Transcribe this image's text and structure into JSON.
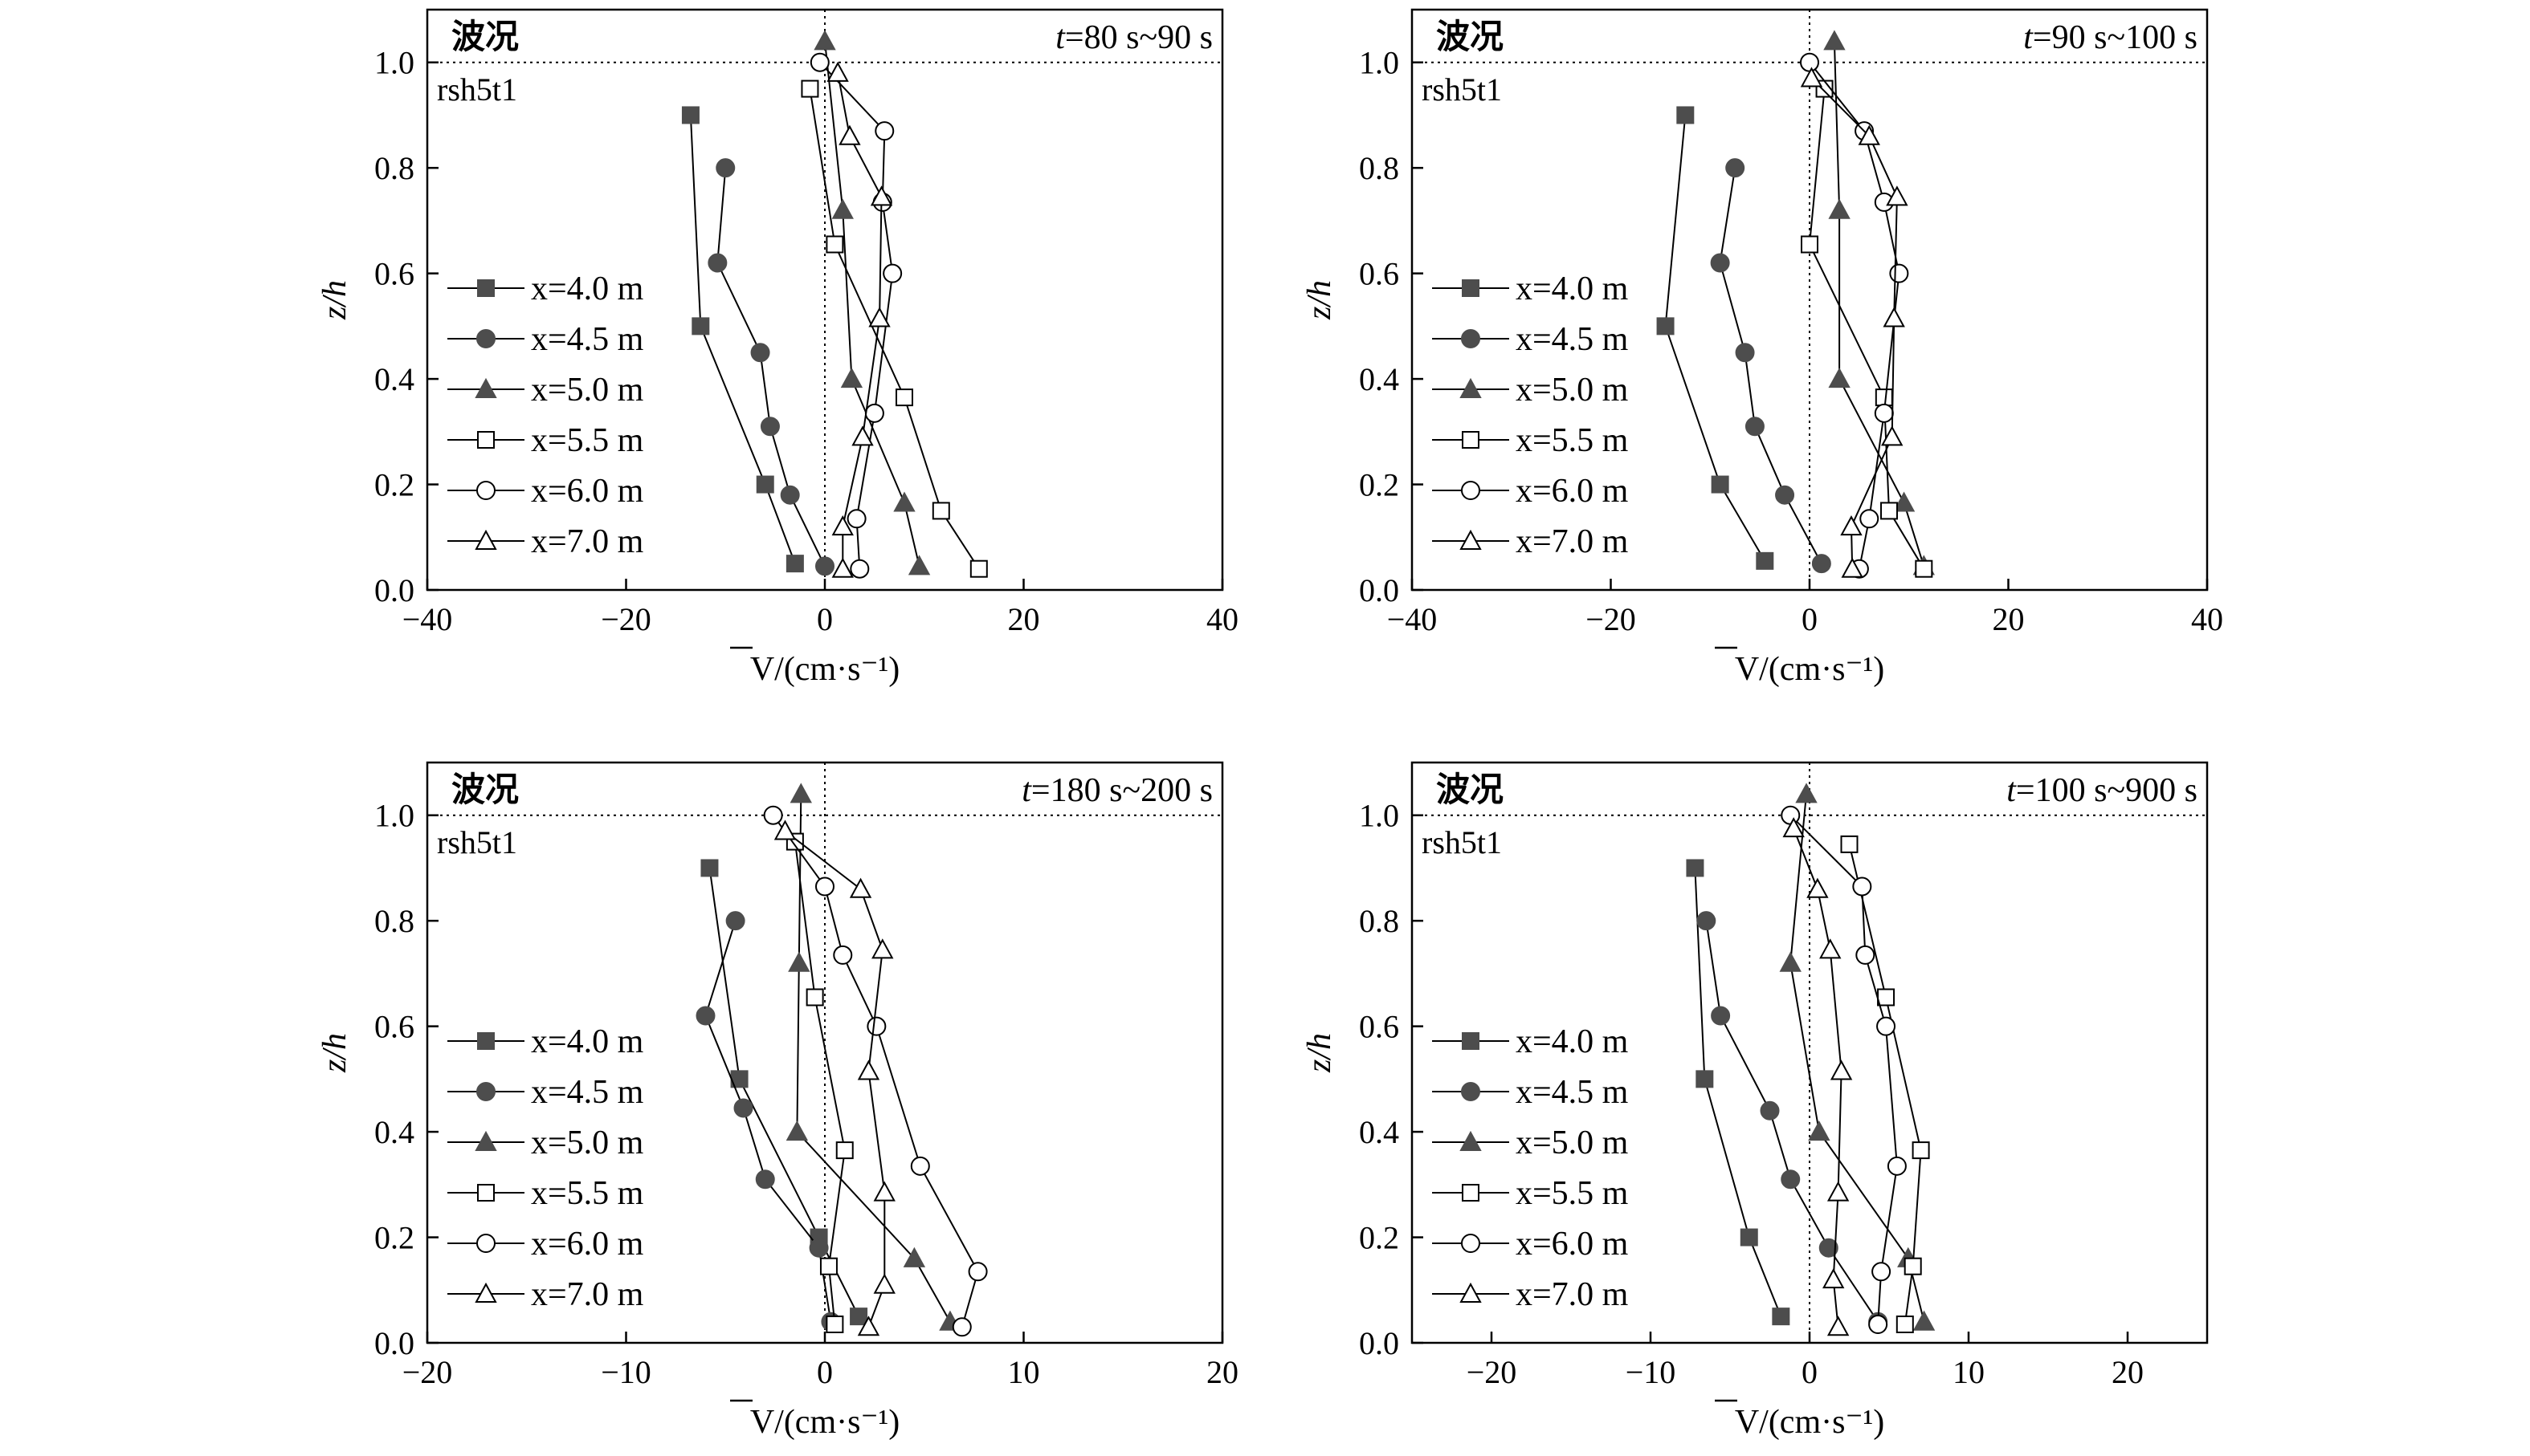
{
  "series_labels": [
    "x=4.0 m",
    "x=4.5 m",
    "x=5.0 m",
    "x=5.5 m",
    "x=6.0 m",
    "x=7.0 m"
  ],
  "series_styles": [
    {
      "marker": "square",
      "filled": true
    },
    {
      "marker": "circle",
      "filled": true
    },
    {
      "marker": "triangle",
      "filled": true
    },
    {
      "marker": "square",
      "filled": false
    },
    {
      "marker": "circle",
      "filled": false
    },
    {
      "marker": "triangle",
      "filled": false
    }
  ],
  "colors": {
    "filled_marker": "#4d4d4d",
    "line": "#000000",
    "background": "#ffffff"
  },
  "chart_data": [
    {
      "type": "line",
      "wave_label": "波况",
      "case_label": "rsh5t1",
      "time_label_var": "t",
      "time_label_rest": "=80 s~90 s",
      "xlabel": "V/(cm·s⁻¹)",
      "ylabel": "z/h",
      "xlim": [
        -40,
        40
      ],
      "ylim": [
        0,
        1.1
      ],
      "xticks": [
        -40,
        -20,
        0,
        20,
        40
      ],
      "yticks": [
        0.0,
        0.2,
        0.4,
        0.6,
        0.8,
        1.0
      ],
      "xticklabels": [
        "−40",
        "−20",
        "0",
        "20",
        "40"
      ],
      "yticklabels": [
        "0.0",
        "0.2",
        "0.4",
        "0.6",
        "0.8",
        "1.0"
      ],
      "reference_lines": {
        "x": 0,
        "y": 1.0
      },
      "series": [
        {
          "name": "x=4.0 m",
          "points": [
            [
              -13.5,
              0.9
            ],
            [
              -12.5,
              0.5
            ],
            [
              -6,
              0.2
            ],
            [
              -3,
              0.05
            ]
          ]
        },
        {
          "name": "x=4.5 m",
          "points": [
            [
              -10,
              0.8
            ],
            [
              -10.8,
              0.62
            ],
            [
              -6.5,
              0.45
            ],
            [
              -5.5,
              0.31
            ],
            [
              -3.5,
              0.18
            ],
            [
              0,
              0.045
            ]
          ]
        },
        {
          "name": "x=5.0 m",
          "points": [
            [
              0,
              1.04
            ],
            [
              1.8,
              0.72
            ],
            [
              2.7,
              0.4
            ],
            [
              8,
              0.165
            ],
            [
              9.5,
              0.045
            ]
          ]
        },
        {
          "name": "x=5.5 m",
          "points": [
            [
              -1.5,
              0.95
            ],
            [
              1,
              0.655
            ],
            [
              8,
              0.365
            ],
            [
              11.7,
              0.15
            ],
            [
              15.5,
              0.04
            ]
          ]
        },
        {
          "name": "x=6.0 m",
          "points": [
            [
              -0.5,
              1.0
            ],
            [
              6,
              0.87
            ],
            [
              5.8,
              0.735
            ],
            [
              6.8,
              0.6
            ],
            [
              5,
              0.335
            ],
            [
              3.2,
              0.135
            ],
            [
              3.5,
              0.04
            ]
          ]
        },
        {
          "name": "x=7.0 m",
          "points": [
            [
              1.3,
              0.98
            ],
            [
              2.5,
              0.86
            ],
            [
              5.7,
              0.745
            ],
            [
              5.5,
              0.515
            ],
            [
              3.8,
              0.29
            ],
            [
              1.8,
              0.12
            ],
            [
              1.8,
              0.04
            ]
          ]
        }
      ]
    },
    {
      "type": "line",
      "wave_label": "波况",
      "case_label": "rsh5t1",
      "time_label_var": "t",
      "time_label_rest": "=90 s~100 s",
      "xlabel": "V/(cm·s⁻¹)",
      "ylabel": "z/h",
      "xlim": [
        -40,
        40
      ],
      "ylim": [
        0,
        1.1
      ],
      "xticks": [
        -40,
        -20,
        0,
        20,
        40
      ],
      "yticks": [
        0.0,
        0.2,
        0.4,
        0.6,
        0.8,
        1.0
      ],
      "xticklabels": [
        "−40",
        "−20",
        "0",
        "20",
        "40"
      ],
      "yticklabels": [
        "0.0",
        "0.2",
        "0.4",
        "0.6",
        "0.8",
        "1.0"
      ],
      "reference_lines": {
        "x": 0,
        "y": 1.0
      },
      "series": [
        {
          "name": "x=4.0 m",
          "points": [
            [
              -12.5,
              0.9
            ],
            [
              -14.5,
              0.5
            ],
            [
              -9,
              0.2
            ],
            [
              -4.5,
              0.055
            ]
          ]
        },
        {
          "name": "x=4.5 m",
          "points": [
            [
              -7.5,
              0.8
            ],
            [
              -9,
              0.62
            ],
            [
              -6.5,
              0.45
            ],
            [
              -5.5,
              0.31
            ],
            [
              -2.5,
              0.18
            ],
            [
              1.2,
              0.05
            ]
          ]
        },
        {
          "name": "x=5.0 m",
          "points": [
            [
              2.5,
              1.04
            ],
            [
              3,
              0.72
            ],
            [
              3,
              0.4
            ],
            [
              9.5,
              0.165
            ],
            [
              11.5,
              0.045
            ]
          ]
        },
        {
          "name": "x=5.5 m",
          "points": [
            [
              1.5,
              0.95
            ],
            [
              0,
              0.655
            ],
            [
              7.5,
              0.365
            ],
            [
              8,
              0.15
            ],
            [
              11.5,
              0.04
            ]
          ]
        },
        {
          "name": "x=6.0 m",
          "points": [
            [
              0,
              1.0
            ],
            [
              5.5,
              0.87
            ],
            [
              7.5,
              0.735
            ],
            [
              9,
              0.6
            ],
            [
              7.5,
              0.335
            ],
            [
              6,
              0.135
            ],
            [
              5,
              0.04
            ]
          ]
        },
        {
          "name": "x=7.0 m",
          "points": [
            [
              0.2,
              0.97
            ],
            [
              6,
              0.86
            ],
            [
              8.8,
              0.745
            ],
            [
              8.5,
              0.515
            ],
            [
              8.3,
              0.29
            ],
            [
              4.2,
              0.12
            ],
            [
              4.3,
              0.04
            ]
          ]
        }
      ]
    },
    {
      "type": "line",
      "wave_label": "波况",
      "case_label": "rsh5t1",
      "time_label_var": "t",
      "time_label_rest": "=180 s~200 s",
      "xlabel": "V/(cm·s⁻¹)",
      "ylabel": "z/h",
      "xlim": [
        -20,
        20
      ],
      "ylim": [
        0,
        1.1
      ],
      "xticks": [
        -20,
        -10,
        0,
        10,
        20
      ],
      "yticks": [
        0.0,
        0.2,
        0.4,
        0.6,
        0.8,
        1.0
      ],
      "xticklabels": [
        "−20",
        "−10",
        "0",
        "10",
        "20"
      ],
      "yticklabels": [
        "0.0",
        "0.2",
        "0.4",
        "0.6",
        "0.8",
        "1.0"
      ],
      "reference_lines": {
        "x": 0,
        "y": 1.0
      },
      "series": [
        {
          "name": "x=4.0 m",
          "points": [
            [
              -5.8,
              0.9
            ],
            [
              -4.3,
              0.5
            ],
            [
              -0.3,
              0.2
            ],
            [
              1.7,
              0.05
            ]
          ]
        },
        {
          "name": "x=4.5 m",
          "points": [
            [
              -4.5,
              0.8
            ],
            [
              -6,
              0.62
            ],
            [
              -4.1,
              0.445
            ],
            [
              -3,
              0.31
            ],
            [
              -0.3,
              0.18
            ],
            [
              0.3,
              0.04
            ]
          ]
        },
        {
          "name": "x=5.0 m",
          "points": [
            [
              -1.2,
              1.04
            ],
            [
              -1.3,
              0.72
            ],
            [
              -1.4,
              0.4
            ],
            [
              4.5,
              0.16
            ],
            [
              6.3,
              0.04
            ]
          ]
        },
        {
          "name": "x=5.5 m",
          "points": [
            [
              -1.5,
              0.95
            ],
            [
              -0.5,
              0.655
            ],
            [
              1,
              0.365
            ],
            [
              0.2,
              0.145
            ],
            [
              0.5,
              0.035
            ]
          ]
        },
        {
          "name": "x=6.0 m",
          "points": [
            [
              -2.6,
              1.0
            ],
            [
              0,
              0.865
            ],
            [
              0.9,
              0.735
            ],
            [
              2.6,
              0.6
            ],
            [
              4.8,
              0.335
            ],
            [
              7.7,
              0.135
            ],
            [
              6.9,
              0.03
            ]
          ]
        },
        {
          "name": "x=7.0 m",
          "points": [
            [
              -2,
              0.97
            ],
            [
              1.8,
              0.86
            ],
            [
              2.9,
              0.745
            ],
            [
              2.2,
              0.515
            ],
            [
              3,
              0.285
            ],
            [
              3,
              0.11
            ],
            [
              2.2,
              0.03
            ]
          ]
        }
      ]
    },
    {
      "type": "line",
      "wave_label": "波况",
      "case_label": "rsh5t1",
      "time_label_var": "t",
      "time_label_rest": "=100 s~900 s",
      "xlabel": "V/(cm·s⁻¹)",
      "ylabel": "z/h",
      "xlim": [
        -25,
        25
      ],
      "ylim": [
        0,
        1.1
      ],
      "xticks": [
        -20,
        -10,
        0,
        10,
        20
      ],
      "yticks": [
        0.0,
        0.2,
        0.4,
        0.6,
        0.8,
        1.0
      ],
      "xticklabels": [
        "−20",
        "−10",
        "0",
        "10",
        "20"
      ],
      "yticklabels": [
        "0.0",
        "0.2",
        "0.4",
        "0.6",
        "0.8",
        "1.0"
      ],
      "reference_lines": {
        "x": 0,
        "y": 1.0
      },
      "series": [
        {
          "name": "x=4.0 m",
          "points": [
            [
              -7.2,
              0.9
            ],
            [
              -6.6,
              0.5
            ],
            [
              -3.8,
              0.2
            ],
            [
              -1.8,
              0.05
            ]
          ]
        },
        {
          "name": "x=4.5 m",
          "points": [
            [
              -6.5,
              0.8
            ],
            [
              -5.6,
              0.62
            ],
            [
              -2.5,
              0.44
            ],
            [
              -1.2,
              0.31
            ],
            [
              1.2,
              0.18
            ],
            [
              4.3,
              0.04
            ]
          ]
        },
        {
          "name": "x=5.0 m",
          "points": [
            [
              -0.2,
              1.04
            ],
            [
              -1.2,
              0.72
            ],
            [
              0.6,
              0.4
            ],
            [
              6.2,
              0.16
            ],
            [
              7.2,
              0.04
            ]
          ]
        },
        {
          "name": "x=5.5 m",
          "points": [
            [
              2.5,
              0.945
            ],
            [
              4.8,
              0.655
            ],
            [
              7,
              0.365
            ],
            [
              6.5,
              0.145
            ],
            [
              6,
              0.035
            ]
          ]
        },
        {
          "name": "x=6.0 m",
          "points": [
            [
              -1.2,
              1.0
            ],
            [
              3.3,
              0.865
            ],
            [
              3.5,
              0.735
            ],
            [
              4.8,
              0.6
            ],
            [
              5.5,
              0.335
            ],
            [
              4.5,
              0.135
            ],
            [
              4.3,
              0.035
            ]
          ]
        },
        {
          "name": "x=7.0 m",
          "points": [
            [
              -1,
              0.975
            ],
            [
              0.5,
              0.86
            ],
            [
              1.3,
              0.745
            ],
            [
              2,
              0.515
            ],
            [
              1.8,
              0.285
            ],
            [
              1.5,
              0.12
            ],
            [
              1.8,
              0.03
            ]
          ]
        }
      ]
    }
  ]
}
